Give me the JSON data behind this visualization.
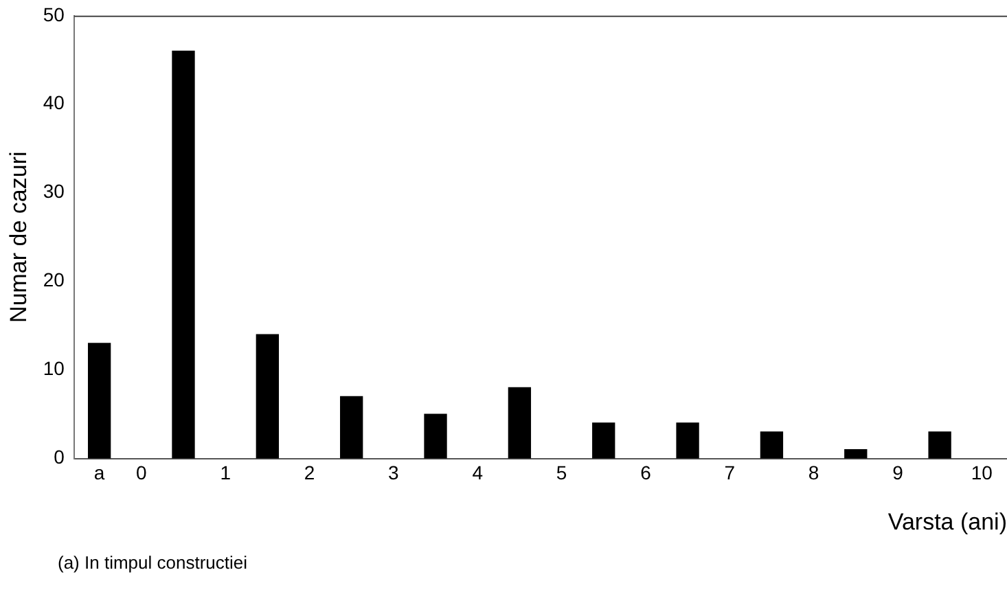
{
  "chart_data": {
    "type": "bar",
    "xlabel": "Varsta (ani)",
    "ylabel": "Numar de cazuri",
    "annotations": [
      "(a) In timpul constructiei"
    ],
    "x": [
      -0.5,
      0.5,
      1.5,
      2.5,
      3.5,
      4.5,
      5.5,
      6.5,
      7.5,
      8.5,
      9.5
    ],
    "values": [
      13,
      46,
      14,
      7,
      5,
      8,
      4,
      4,
      3,
      1,
      3
    ],
    "color": "#000000",
    "xlim": [
      -0.8,
      10.3
    ],
    "xticks": [
      {
        "value": -0.5,
        "label": "a"
      },
      0,
      1,
      2,
      3,
      4,
      5,
      6,
      7,
      8,
      9,
      10
    ],
    "ylim": [
      0,
      50
    ],
    "yticks": [
      0,
      10,
      20,
      30,
      40,
      50
    ],
    "grid": false,
    "legend": false
  }
}
